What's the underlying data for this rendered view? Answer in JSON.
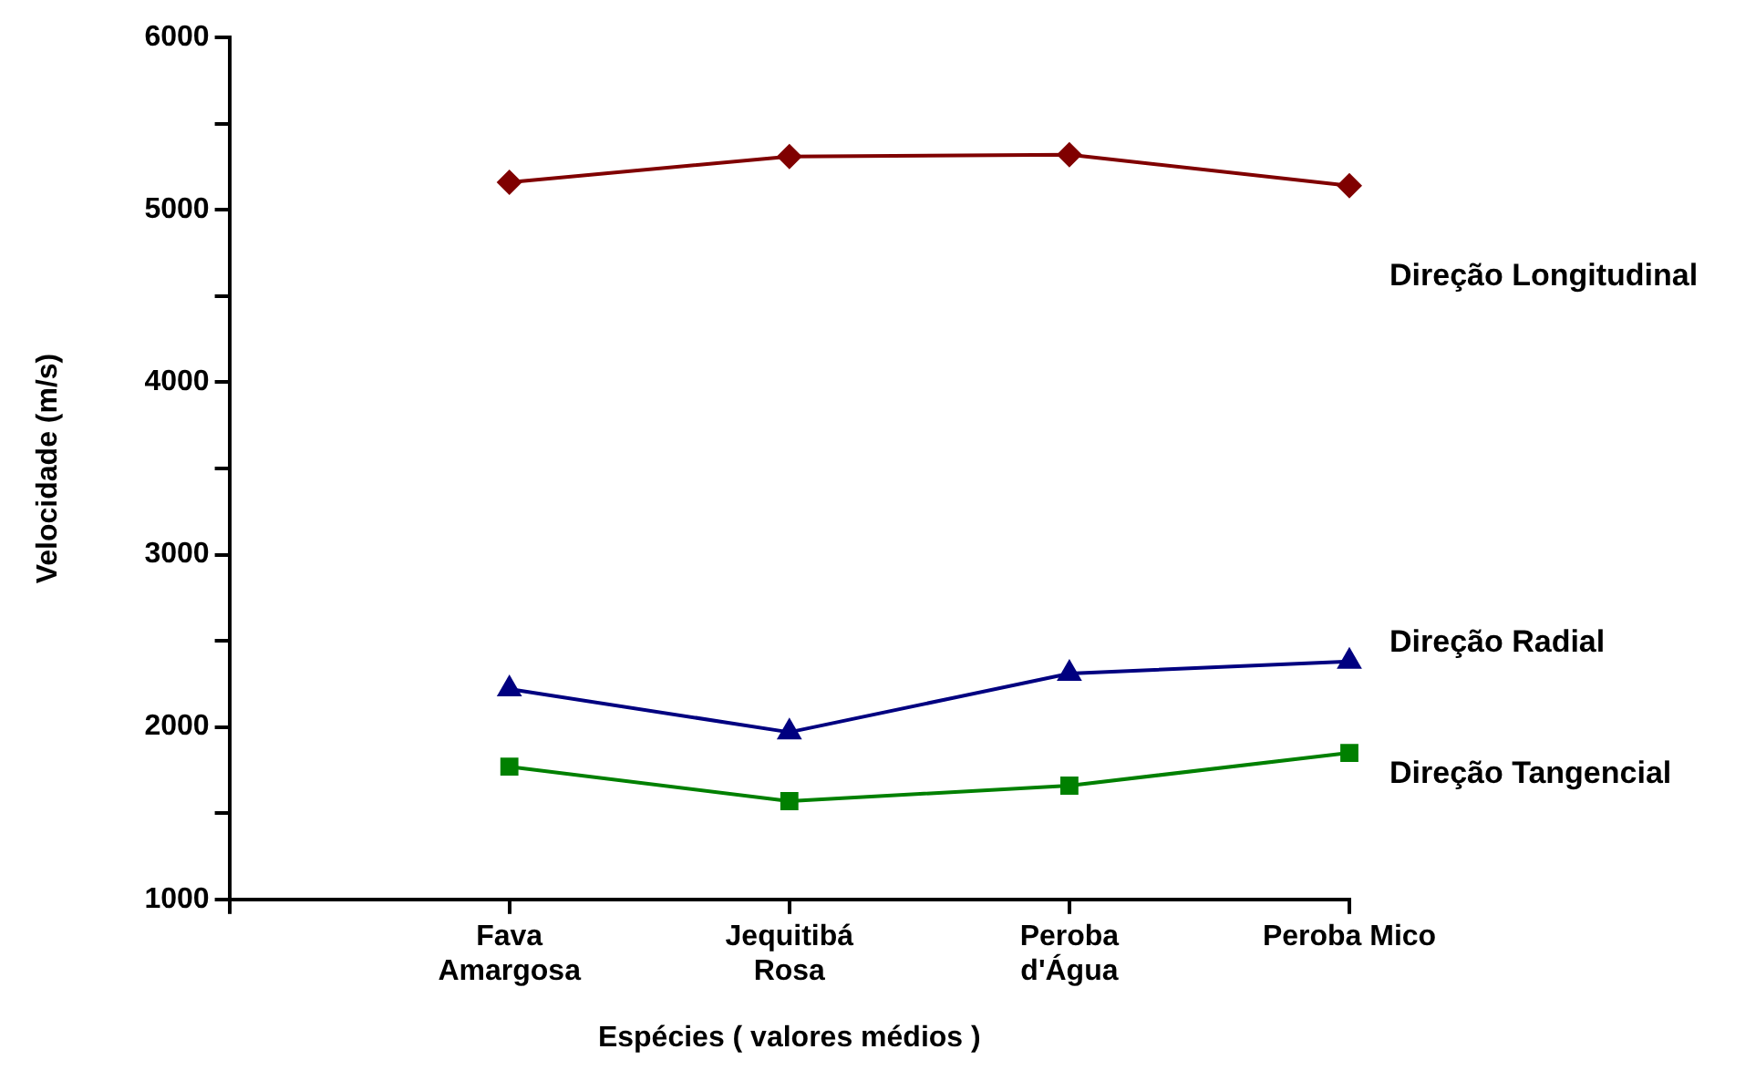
{
  "chart_data": {
    "type": "line",
    "xlabel": "Espécies ( valores médios )",
    "ylabel": "Velocidade (m/s)",
    "categories": [
      null,
      "Fava Amargosa",
      "Jequitibá Rosa",
      "Peroba d'Água",
      "Peroba Mico"
    ],
    "series": [
      {
        "name": "Direção Longitudinal",
        "color": "#800000",
        "marker": "diamond",
        "values": [
          null,
          5160,
          5310,
          5320,
          5140
        ]
      },
      {
        "name": "Direção Radial",
        "color": "#000080",
        "marker": "triangle",
        "values": [
          null,
          2220,
          1970,
          2310,
          2380
        ]
      },
      {
        "name": "Direção Tangencial",
        "color": "#008000",
        "marker": "square",
        "values": [
          null,
          1770,
          1570,
          1660,
          1850
        ]
      }
    ],
    "ylim": [
      1000,
      6000
    ],
    "yticks": [
      1000,
      {
        "value": 1500,
        "label": null
      },
      2000,
      {
        "value": 2500,
        "label": null
      },
      3000,
      {
        "value": 3500,
        "label": null
      },
      4000,
      {
        "value": 4500,
        "label": null
      },
      5000,
      {
        "value": 5500,
        "label": null
      },
      6000
    ],
    "grid": false,
    "legend": false,
    "line_style": "solid"
  }
}
